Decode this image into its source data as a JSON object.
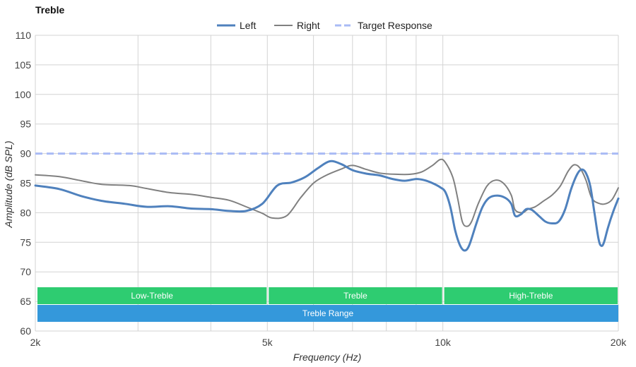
{
  "chart_data": {
    "type": "line",
    "title": "Treble",
    "xlabel": "Frequency (Hz)",
    "ylabel": "Amplitude (dB SPL)",
    "x_scale": "log",
    "xlim": [
      2000,
      20000
    ],
    "ylim": [
      60,
      110
    ],
    "x_ticks": [
      {
        "value": 2000,
        "label": "2k"
      },
      {
        "value": 5000,
        "label": "5k"
      },
      {
        "value": 10000,
        "label": "10k"
      },
      {
        "value": 20000,
        "label": "20k"
      }
    ],
    "x_gridlines": [
      2000,
      3000,
      4000,
      5000,
      6000,
      7000,
      8000,
      9000,
      10000,
      20000
    ],
    "y_ticks": [
      60,
      65,
      70,
      75,
      80,
      85,
      90,
      95,
      100,
      105,
      110
    ],
    "grid": true,
    "legend_position": "top-center",
    "series": [
      {
        "name": "Left",
        "color": "#4f81bd",
        "style": "solid-thick",
        "points": [
          [
            2000,
            84.6
          ],
          [
            2200,
            84.0
          ],
          [
            2400,
            82.8
          ],
          [
            2600,
            82.0
          ],
          [
            2850,
            81.5
          ],
          [
            3100,
            81.0
          ],
          [
            3400,
            81.1
          ],
          [
            3700,
            80.7
          ],
          [
            4000,
            80.6
          ],
          [
            4300,
            80.3
          ],
          [
            4600,
            80.3
          ],
          [
            4900,
            81.5
          ],
          [
            5200,
            84.6
          ],
          [
            5500,
            85.1
          ],
          [
            5800,
            86.0
          ],
          [
            6100,
            87.5
          ],
          [
            6400,
            88.7
          ],
          [
            6700,
            88.2
          ],
          [
            7000,
            87.2
          ],
          [
            7400,
            86.6
          ],
          [
            7800,
            86.3
          ],
          [
            8200,
            85.7
          ],
          [
            8600,
            85.4
          ],
          [
            9000,
            85.7
          ],
          [
            9300,
            85.5
          ],
          [
            9600,
            85.0
          ],
          [
            9900,
            84.3
          ],
          [
            10100,
            83.5
          ],
          [
            10300,
            81.0
          ],
          [
            10500,
            77.0
          ],
          [
            10700,
            74.5
          ],
          [
            10900,
            73.6
          ],
          [
            11100,
            74.5
          ],
          [
            11400,
            78.0
          ],
          [
            11700,
            81.0
          ],
          [
            12000,
            82.5
          ],
          [
            12400,
            82.9
          ],
          [
            12800,
            82.5
          ],
          [
            13100,
            81.5
          ],
          [
            13300,
            79.5
          ],
          [
            13600,
            79.7
          ],
          [
            13900,
            80.6
          ],
          [
            14200,
            80.5
          ],
          [
            14600,
            79.5
          ],
          [
            15000,
            78.5
          ],
          [
            15400,
            78.2
          ],
          [
            15800,
            78.5
          ],
          [
            16200,
            80.5
          ],
          [
            16600,
            84.0
          ],
          [
            17000,
            86.5
          ],
          [
            17300,
            87.3
          ],
          [
            17600,
            86.7
          ],
          [
            17900,
            84.5
          ],
          [
            18200,
            80.0
          ],
          [
            18500,
            75.5
          ],
          [
            18700,
            74.4
          ],
          [
            18900,
            75.0
          ],
          [
            19200,
            77.5
          ],
          [
            19600,
            80.2
          ],
          [
            20000,
            82.4
          ]
        ]
      },
      {
        "name": "Right",
        "color": "#808080",
        "style": "solid-thin",
        "points": [
          [
            2000,
            86.4
          ],
          [
            2200,
            86.1
          ],
          [
            2400,
            85.4
          ],
          [
            2600,
            84.8
          ],
          [
            2900,
            84.6
          ],
          [
            3100,
            84.1
          ],
          [
            3400,
            83.4
          ],
          [
            3700,
            83.1
          ],
          [
            4000,
            82.6
          ],
          [
            4300,
            82.1
          ],
          [
            4600,
            81.0
          ],
          [
            4900,
            79.9
          ],
          [
            5100,
            79.1
          ],
          [
            5400,
            79.5
          ],
          [
            5700,
            82.5
          ],
          [
            6000,
            85.0
          ],
          [
            6300,
            86.3
          ],
          [
            6700,
            87.4
          ],
          [
            7000,
            88.0
          ],
          [
            7400,
            87.3
          ],
          [
            7800,
            86.7
          ],
          [
            8300,
            86.5
          ],
          [
            8800,
            86.5
          ],
          [
            9200,
            86.9
          ],
          [
            9600,
            88.0
          ],
          [
            9900,
            89.0
          ],
          [
            10100,
            88.5
          ],
          [
            10400,
            86.0
          ],
          [
            10600,
            82.5
          ],
          [
            10800,
            78.5
          ],
          [
            11000,
            77.7
          ],
          [
            11200,
            78.5
          ],
          [
            11500,
            81.5
          ],
          [
            11900,
            84.5
          ],
          [
            12300,
            85.5
          ],
          [
            12700,
            85.0
          ],
          [
            13100,
            83.0
          ],
          [
            13300,
            80.5
          ],
          [
            13700,
            80.0
          ],
          [
            14000,
            80.6
          ],
          [
            14400,
            81.0
          ],
          [
            14900,
            82.0
          ],
          [
            15400,
            83.0
          ],
          [
            15900,
            84.5
          ],
          [
            16400,
            87.0
          ],
          [
            16800,
            88.1
          ],
          [
            17200,
            87.5
          ],
          [
            17600,
            85.5
          ],
          [
            18000,
            82.5
          ],
          [
            18500,
            81.6
          ],
          [
            19000,
            81.5
          ],
          [
            19500,
            82.2
          ],
          [
            20000,
            84.2
          ]
        ]
      },
      {
        "name": "Target Response",
        "color": "#a9bbf5",
        "style": "dashed",
        "points": [
          [
            2000,
            90
          ],
          [
            20000,
            90
          ]
        ]
      }
    ],
    "bands": [
      {
        "label": "Low-Treble",
        "from": 2000,
        "to": 5000,
        "row": 0,
        "color": "#2ecc71"
      },
      {
        "label": "Treble",
        "from": 5000,
        "to": 10000,
        "row": 0,
        "color": "#2ecc71"
      },
      {
        "label": "High-Treble",
        "from": 10000,
        "to": 20000,
        "row": 0,
        "color": "#2ecc71"
      },
      {
        "label": "Treble Range",
        "from": 2000,
        "to": 20000,
        "row": 1,
        "color": "#3498db"
      }
    ]
  }
}
